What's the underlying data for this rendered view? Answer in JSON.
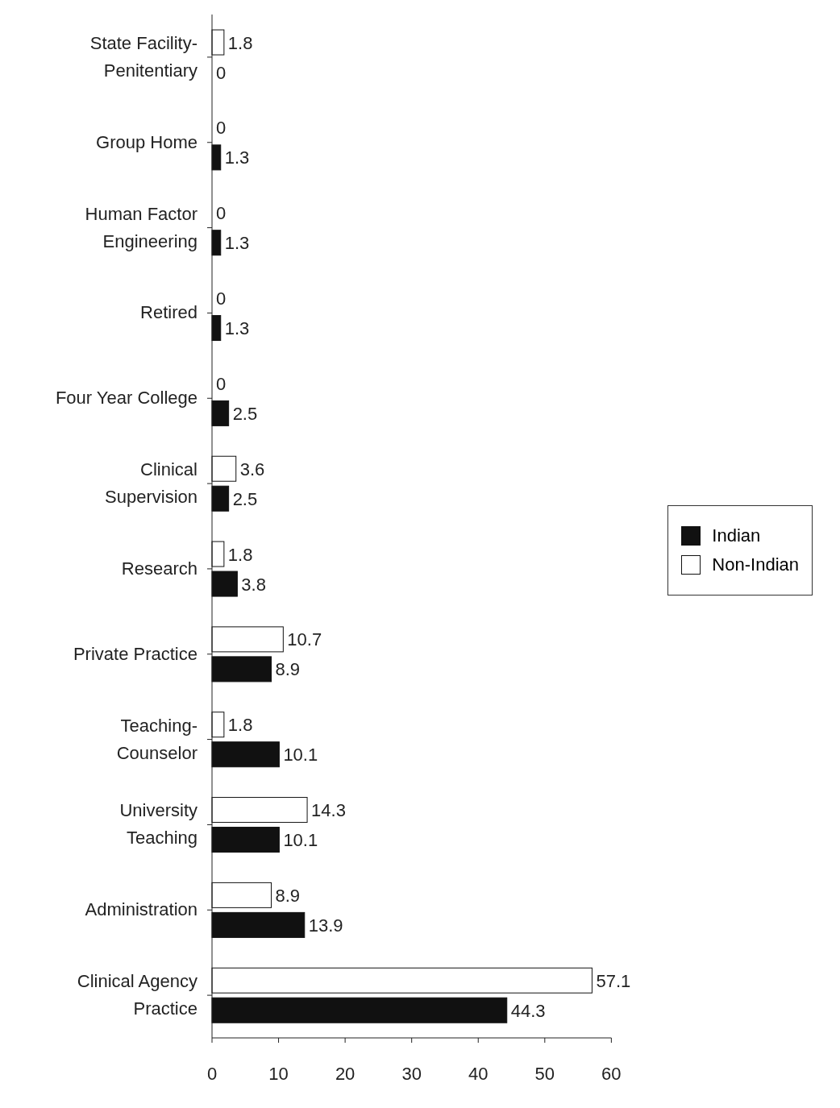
{
  "chart_data": {
    "type": "bar",
    "orientation": "horizontal",
    "categories": [
      "State Facility-\nPenitentiary",
      "Group Home",
      "Human Factor\nEngineering",
      "Retired",
      "Four Year College",
      "Clinical\nSupervision",
      "Research",
      "Private Practice",
      "Teaching-\nCounselor",
      "University\nTeaching",
      "Administration",
      "Clinical Agency\nPractice"
    ],
    "series": [
      {
        "name": "Indian",
        "color": "#111111",
        "values": [
          0,
          1.3,
          1.3,
          1.3,
          2.5,
          2.5,
          3.8,
          8.9,
          10.1,
          10.1,
          13.9,
          44.3
        ]
      },
      {
        "name": "Non-Indian",
        "color": "#ffffff",
        "values": [
          1.8,
          0,
          0,
          0,
          0,
          3.6,
          1.8,
          10.7,
          1.8,
          14.3,
          8.9,
          57.1
        ]
      }
    ],
    "xlim": [
      0,
      60
    ],
    "xticks": [
      0,
      10,
      20,
      30,
      40,
      50,
      60
    ],
    "data_labels": true,
    "legend": "right"
  }
}
